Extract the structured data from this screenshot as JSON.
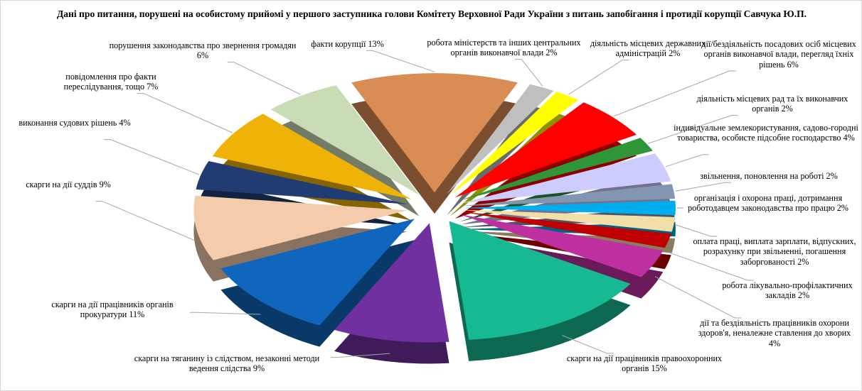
{
  "title": "Дані про питання, порушені на особистому прийомі у першого заступника голови Комітету Верховної Ради України з питань запобігання і протидії корупції Савчука Ю.П.",
  "leader_line_color": "#a6a6a6",
  "frame_border_color": "#d8d8d8",
  "chart_data": {
    "type": "pie",
    "style": "3d-exploded",
    "title": "Дані про питання, порушені на особистому прийомі у першого заступника голови Комітету Верховної Ради України з питань запобігання і протидії корупції Савчука Ю.П.",
    "unit": "%",
    "legend": "none, callout data labels with leader lines",
    "slices": [
      {
        "label": "факти корупції",
        "value": 13,
        "color": "#D98C54"
      },
      {
        "label": "робота міністерств  та інших центральних  органів виконавчої влади",
        "value": 2,
        "color": "#BFBFBF"
      },
      {
        "label": "діяльність  місцевих державних  адміністрацій",
        "value": 2,
        "color": "#FFFF00"
      },
      {
        "label": "дії/бездіяльність  посадових осіб місцевих  органів  виконавчої влади, перегляд їхніх  рішень",
        "value": 6,
        "color": "#FE0000"
      },
      {
        "label": "діяльність  місцевих  рад та їх виконавчих органів",
        "value": 2,
        "color": "#2E9639"
      },
      {
        "label": "індивідуальне  землекористування, садово-городні товариства,  особисте підсобне господарство",
        "value": 4,
        "color": "#CCCCFF"
      },
      {
        "label": "звільнення,  поновлення на роботі",
        "value": 2,
        "color": "#8296B1"
      },
      {
        "label": "організація і охорона праці, дотримання роботодавцем законодавства  про працю",
        "value": 2,
        "color": "#00AEEF"
      },
      {
        "label": "оплата праці, виплата зарплати, відпускних,  розрахунку при звільненні, погашення заборгованості",
        "value": 2,
        "color": "#F2DFA7"
      },
      {
        "label": "робота лікувально-профілактичних  закладів",
        "value": 2,
        "color": "#C00000"
      },
      {
        "label": "дії  та бездіяльність  працівників охорони здоров'я, неналежне ставлення до хворих",
        "value": 4,
        "color": "#BE2F9F"
      },
      {
        "label": "скарги на дії  працівників правоохоронних  органів",
        "value": 15,
        "color": "#17B992"
      },
      {
        "label": "скарги на тяганину  із слідством,  незаконні методи ведення слідства",
        "value": 9,
        "color": "#7030A0"
      },
      {
        "label": "скарги на дії  працівників  органів прокуратури",
        "value": 11,
        "color": "#1066BC"
      },
      {
        "label": "скарги на дії  суддів",
        "value": 9,
        "color": "#F4CCAC"
      },
      {
        "label": "виконання судових  рішень",
        "value": 4,
        "color": "#213C72"
      },
      {
        "label": "повідомлення про факти переслідування,  тощо",
        "value": 7,
        "color": "#EFB206"
      },
      {
        "label": "порушення законодавства про звернення громадян",
        "value": 6,
        "color": "#C9DCB5"
      }
    ]
  }
}
